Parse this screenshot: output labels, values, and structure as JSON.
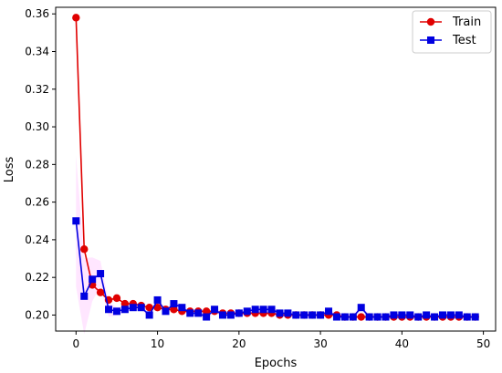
{
  "chart_data": {
    "type": "line",
    "xlabel": "Epochs",
    "ylabel": "Loss",
    "xlim": [
      -2.5,
      51.5
    ],
    "ylim": [
      0.1915,
      0.3635
    ],
    "xticks": [
      0,
      10,
      20,
      30,
      40,
      50
    ],
    "yticks": [
      0.2,
      0.22,
      0.24,
      0.26,
      0.28,
      0.3,
      0.32,
      0.34,
      0.36
    ],
    "legend_position": "top-right",
    "grid": false,
    "series": [
      {
        "name": "Train",
        "color": "#e00000",
        "marker": "circle",
        "x": [
          0,
          1,
          2,
          3,
          4,
          5,
          6,
          7,
          8,
          9,
          10,
          11,
          12,
          13,
          14,
          15,
          16,
          17,
          18,
          19,
          20,
          21,
          22,
          23,
          24,
          25,
          26,
          27,
          28,
          29,
          30,
          31,
          32,
          33,
          34,
          35,
          36,
          37,
          38,
          39,
          40,
          41,
          42,
          43,
          44,
          45,
          46,
          47,
          48,
          49
        ],
        "values": [
          0.358,
          0.235,
          0.216,
          0.212,
          0.208,
          0.209,
          0.206,
          0.206,
          0.205,
          0.204,
          0.204,
          0.203,
          0.203,
          0.202,
          0.202,
          0.202,
          0.202,
          0.202,
          0.201,
          0.201,
          0.201,
          0.201,
          0.201,
          0.201,
          0.201,
          0.2,
          0.2,
          0.2,
          0.2,
          0.2,
          0.2,
          0.2,
          0.2,
          0.199,
          0.199,
          0.199,
          0.199,
          0.199,
          0.199,
          0.199,
          0.199,
          0.199,
          0.199,
          0.199,
          0.199,
          0.199,
          0.199,
          0.199,
          0.199,
          0.199
        ]
      },
      {
        "name": "Test",
        "color": "#0000e0",
        "marker": "square",
        "x": [
          0,
          1,
          2,
          3,
          4,
          5,
          6,
          7,
          8,
          9,
          10,
          11,
          12,
          13,
          14,
          15,
          16,
          17,
          18,
          19,
          20,
          21,
          22,
          23,
          24,
          25,
          26,
          27,
          28,
          29,
          30,
          31,
          32,
          33,
          34,
          35,
          36,
          37,
          38,
          39,
          40,
          41,
          42,
          43,
          44,
          45,
          46,
          47,
          48,
          49
        ],
        "values": [
          0.25,
          0.21,
          0.219,
          0.222,
          0.203,
          0.202,
          0.203,
          0.204,
          0.204,
          0.2,
          0.208,
          0.202,
          0.206,
          0.204,
          0.201,
          0.201,
          0.199,
          0.203,
          0.2,
          0.2,
          0.201,
          0.202,
          0.203,
          0.203,
          0.203,
          0.201,
          0.201,
          0.2,
          0.2,
          0.2,
          0.2,
          0.202,
          0.199,
          0.199,
          0.199,
          0.204,
          0.199,
          0.199,
          0.199,
          0.2,
          0.2,
          0.2,
          0.199,
          0.2,
          0.199,
          0.2,
          0.2,
          0.2,
          0.199,
          0.199
        ]
      }
    ]
  }
}
